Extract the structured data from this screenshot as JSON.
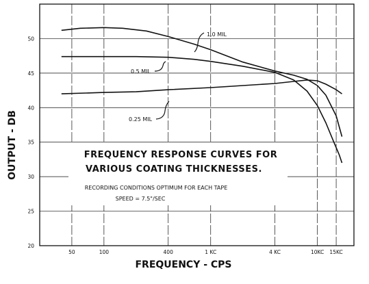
{
  "chart_data": {
    "type": "line",
    "annotation_lines": [
      "FREQUENCY RESPONSE CURVES FOR",
      "VARIOUS COATING THICKNESSES.",
      "RECORDING CONDITIONS OPTIMUM FOR EACH TAPE",
      "SPEED = 7.5\"/SEC"
    ],
    "xlabel": "FREQUENCY - CPS",
    "ylabel": "OUTPUT - DB",
    "x_scale": "log",
    "xlim": [
      25,
      22000
    ],
    "ylim": [
      20,
      55
    ],
    "grid": true,
    "x_ticks": [
      {
        "value": 50,
        "label": "50"
      },
      {
        "value": 100,
        "label": "100"
      },
      {
        "value": 400,
        "label": "400"
      },
      {
        "value": 1000,
        "label": "1 KC"
      },
      {
        "value": 4000,
        "label": "4 KC"
      },
      {
        "value": 10000,
        "label": "10KC"
      },
      {
        "value": 15000,
        "label": "15KC"
      }
    ],
    "y_ticks": [
      {
        "value": 20,
        "label": "20"
      },
      {
        "value": 25,
        "label": "25"
      },
      {
        "value": 30,
        "label": "30"
      },
      {
        "value": 35,
        "label": "35"
      },
      {
        "value": 40,
        "label": "40"
      },
      {
        "value": 45,
        "label": "45"
      },
      {
        "value": 50,
        "label": "50"
      }
    ],
    "series": [
      {
        "name": "1.0 MIL",
        "x": [
          40,
          60,
          100,
          150,
          250,
          400,
          700,
          1000,
          2000,
          4000,
          6000,
          8000,
          10000,
          12000,
          15000,
          17000
        ],
        "y": [
          51.2,
          51.5,
          51.6,
          51.5,
          51.1,
          50.3,
          49.2,
          48.4,
          46.6,
          45.3,
          44.7,
          44.1,
          43.2,
          41.8,
          38.8,
          35.8
        ]
      },
      {
        "name": "0.5 MIL",
        "x": [
          40,
          100,
          200,
          400,
          700,
          1000,
          2000,
          4000,
          6000,
          8000,
          10000,
          12000,
          14000,
          16000,
          17000
        ],
        "y": [
          47.4,
          47.4,
          47.4,
          47.3,
          47.0,
          46.7,
          46.0,
          45.1,
          44.0,
          42.4,
          40.3,
          37.8,
          35.3,
          33.2,
          32.0
        ]
      },
      {
        "name": "0.25 MIL",
        "x": [
          40,
          100,
          200,
          400,
          1000,
          2000,
          4000,
          6000,
          8000,
          10000,
          12000,
          15000,
          17000
        ],
        "y": [
          42.0,
          42.2,
          42.3,
          42.6,
          42.9,
          43.2,
          43.5,
          43.8,
          44.0,
          43.9,
          43.4,
          42.6,
          42.0
        ]
      }
    ]
  }
}
